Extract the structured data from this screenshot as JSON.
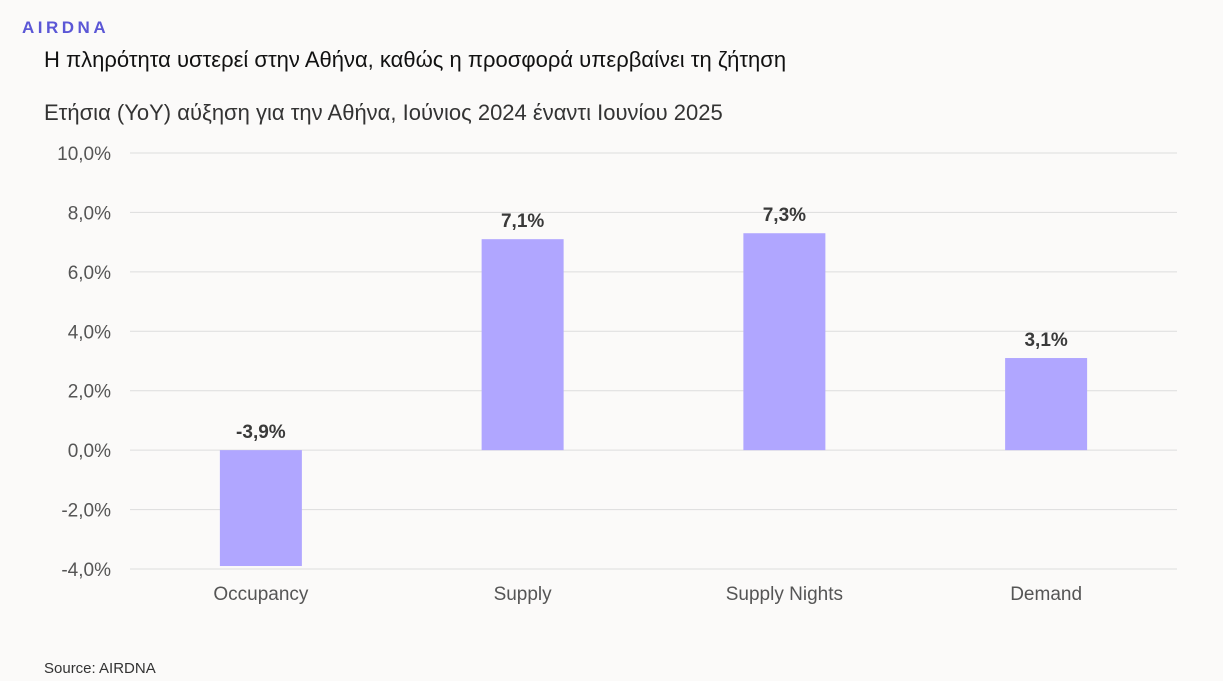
{
  "brand": {
    "logo_text": "AIRDNA",
    "accent": "#5b57d6"
  },
  "source": "Source: AIRDNA",
  "chart_data": {
    "type": "bar",
    "title": "Η πληρότητα υστερεί στην Αθήνα, καθώς η προσφορά υπερβαίνει τη ζήτηση",
    "subtitle": "Ετήσια (YoY) αύξηση για την Αθήνα, Ιούνιος 2024 έναντι Ιουνίου 2025",
    "categories": [
      "Occupancy",
      "Supply",
      "Supply Nights",
      "Demand"
    ],
    "values": [
      -3.9,
      7.1,
      7.3,
      3.1
    ],
    "value_labels": [
      "-3,9%",
      "7,1%",
      "7,3%",
      "3,1%"
    ],
    "ylim": [
      -4,
      10
    ],
    "yticks": [
      -4,
      -2,
      0,
      2,
      4,
      6,
      8,
      10
    ],
    "ytick_labels": [
      "-4,0%",
      "-2,0%",
      "0,0%",
      "2,0%",
      "4,0%",
      "6,0%",
      "8,0%",
      "10,0%"
    ],
    "grid": true,
    "bar_color": "#b0a6ff",
    "grid_color": "#dddddd"
  }
}
